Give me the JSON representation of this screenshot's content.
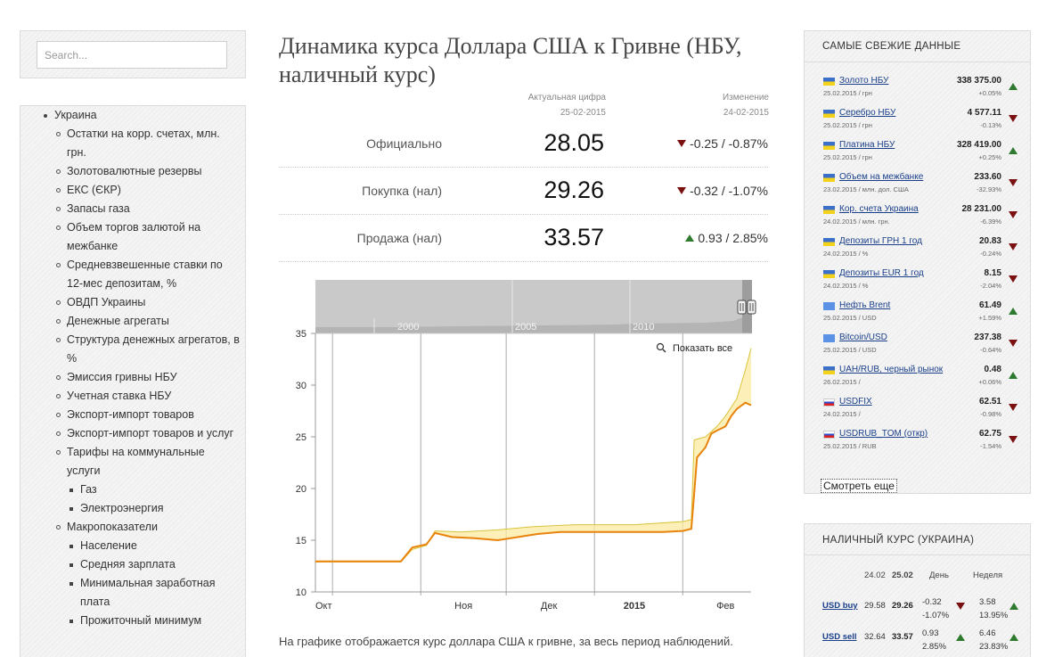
{
  "search": {
    "placeholder": "Search..."
  },
  "nav": {
    "items": [
      {
        "label": "Украина",
        "level": 0
      },
      {
        "label": "Остатки на корр. счетах, млн. грн.",
        "level": 1
      },
      {
        "label": "Золотовалютные резервы",
        "level": 1
      },
      {
        "label": "ЕКС (ЄКР)",
        "level": 1
      },
      {
        "label": "Запасы газа",
        "level": 1
      },
      {
        "label": "Объем торгов залютой на межбанке",
        "level": 1
      },
      {
        "label": "Средневзвешенные ставки по 12-мес депозитам, %",
        "level": 1
      },
      {
        "label": "ОВДП Украины",
        "level": 1
      },
      {
        "label": "Денежные агрегаты",
        "level": 1
      },
      {
        "label": "Структура денежных агрегатов, в %",
        "level": 1
      },
      {
        "label": "Эмиссия гривны НБУ",
        "level": 1
      },
      {
        "label": "Учетная ставка НБУ",
        "level": 1
      },
      {
        "label": "Экспорт-импорт товаров",
        "level": 1
      },
      {
        "label": "Экспорт-импорт товаров и услуг",
        "level": 1
      },
      {
        "label": "Тарифы на коммунальные услуги",
        "level": 1
      },
      {
        "label": "Газ",
        "level": 2
      },
      {
        "label": "Электроэнергия",
        "level": 2
      },
      {
        "label": "Макропоказатели",
        "level": 1
      },
      {
        "label": "Население",
        "level": 2
      },
      {
        "label": "Средняя зарплата",
        "level": 2
      },
      {
        "label": "Минимальная заработная плата",
        "level": 2
      },
      {
        "label": "Прожиточный минимум",
        "level": 2
      }
    ]
  },
  "main": {
    "title": "Динамика курса Доллара США к Гривне (НБУ, наличный курс)",
    "header": {
      "actual_label": "Актуальная цифра",
      "actual_date": "25-02-2015",
      "change_label": "Изменение",
      "change_date": "24-02-2015"
    },
    "rows": [
      {
        "label": "Официально",
        "value": "28.05",
        "change": "-0.25 / -0.87%",
        "direction": "down"
      },
      {
        "label": "Покупка (нал)",
        "value": "29.26",
        "change": "-0.32 / -1.07%",
        "direction": "down"
      },
      {
        "label": "Продажа (нал)",
        "value": "33.57",
        "change": "0.93 / 2.85%",
        "direction": "up"
      }
    ],
    "footnote": "На графике отображается курс доллара США к гривне, за весь период наблюдений."
  },
  "chart_data": {
    "type": "line",
    "reset_zoom_label": "Показать все",
    "navigator_labels": [
      "2000",
      "2005",
      "2010"
    ],
    "x_ticks": [
      "Окт",
      "Ноя",
      "Дек",
      "2015",
      "Фев"
    ],
    "ylim": [
      10,
      35
    ],
    "y_ticks": [
      10,
      15,
      20,
      25,
      30,
      35
    ],
    "x_range": [
      "2014-09-25",
      "2015-02-25"
    ],
    "series": [
      {
        "color": "#e8830c",
        "points": [
          [
            "2014-09-25",
            12.95
          ],
          [
            "2014-10-25",
            12.95
          ],
          [
            "2014-10-29",
            14.3
          ],
          [
            "2014-11-03",
            14.6
          ],
          [
            "2014-11-06",
            15.7
          ],
          [
            "2014-11-12",
            15.3
          ],
          [
            "2014-11-20",
            15.2
          ],
          [
            "2014-11-28",
            15.0
          ],
          [
            "2014-12-05",
            15.3
          ],
          [
            "2014-12-12",
            15.6
          ],
          [
            "2014-12-20",
            15.8
          ],
          [
            "2014-12-27",
            15.8
          ],
          [
            "2015-01-05",
            15.8
          ],
          [
            "2015-01-15",
            15.8
          ],
          [
            "2015-01-25",
            15.8
          ],
          [
            "2015-02-01",
            15.9
          ],
          [
            "2015-02-04",
            16.1
          ],
          [
            "2015-02-05",
            19.5
          ],
          [
            "2015-02-06",
            23.0
          ],
          [
            "2015-02-09",
            24.0
          ],
          [
            "2015-02-11",
            25.3
          ],
          [
            "2015-02-13",
            25.6
          ],
          [
            "2015-02-16",
            26.0
          ],
          [
            "2015-02-18",
            27.0
          ],
          [
            "2015-02-20",
            27.7
          ],
          [
            "2015-02-23",
            28.3
          ],
          [
            "2015-02-25",
            28.05
          ]
        ]
      },
      {
        "color": "#d9c43c",
        "points": [
          [
            "2014-09-25",
            12.9
          ],
          [
            "2014-10-25",
            12.9
          ],
          [
            "2014-10-29",
            14.1
          ],
          [
            "2014-11-03",
            14.5
          ],
          [
            "2014-11-06",
            15.9
          ],
          [
            "2014-11-15",
            15.8
          ],
          [
            "2014-11-28",
            16.0
          ],
          [
            "2014-12-10",
            16.3
          ],
          [
            "2014-12-25",
            16.5
          ],
          [
            "2015-01-15",
            16.5
          ],
          [
            "2015-02-01",
            16.8
          ],
          [
            "2015-02-04",
            17.0
          ],
          [
            "2015-02-05",
            24.7
          ],
          [
            "2015-02-09",
            25.0
          ],
          [
            "2015-02-13",
            26.0
          ],
          [
            "2015-02-16",
            27.0
          ],
          [
            "2015-02-20",
            28.7
          ],
          [
            "2015-02-23",
            31.5
          ],
          [
            "2015-02-25",
            33.57
          ]
        ]
      }
    ]
  },
  "fresh": {
    "title": "САМЫЕ СВЕЖИЕ ДАННЫЕ",
    "more_label": "Смотреть еще",
    "items": [
      {
        "flag": "ua",
        "name": "Золото НБУ",
        "value": "338 375.00",
        "meta": "25.02.2015 / грн",
        "pct": "+0.05%",
        "direction": "up"
      },
      {
        "flag": "ua",
        "name": "Серебро НБУ",
        "value": "4 577.11",
        "meta": "25.02.2015 / грн",
        "pct": "-0.13%",
        "direction": "down"
      },
      {
        "flag": "ua",
        "name": "Платина НБУ",
        "value": "328 419.00",
        "meta": "25.02.2015 / грн",
        "pct": "+0.25%",
        "direction": "up"
      },
      {
        "flag": "ua",
        "name": "Объем на межбанке",
        "value": "233.60",
        "meta": "23.02.2015 / млн. дол. США",
        "pct": "-32.93%",
        "direction": "down"
      },
      {
        "flag": "ua",
        "name": "Кор. счета Украина",
        "value": "28 231.00",
        "meta": "24.02.2015 / млн. грн.",
        "pct": "-6.39%",
        "direction": "down"
      },
      {
        "flag": "ua",
        "name": "Депозиты ГРН 1 год",
        "value": "20.83",
        "meta": "24.02.2015 / %",
        "pct": "-0.24%",
        "direction": "down"
      },
      {
        "flag": "ua",
        "name": "Депозиты EUR 1 год",
        "value": "8.15",
        "meta": "24.02.2015 / %",
        "pct": "-2.04%",
        "direction": "down"
      },
      {
        "flag": "un",
        "name": "Нефть Brent",
        "value": "61.49",
        "meta": "25.02.2015 / USD",
        "pct": "+1.59%",
        "direction": "up"
      },
      {
        "flag": "un",
        "name": "Bitcoin/USD",
        "value": "237.38",
        "meta": "25.02.2015 / USD",
        "pct": "-0.64%",
        "direction": "down"
      },
      {
        "flag": "ua",
        "name": "UAH/RUB, черный рынок",
        "value": "0.48",
        "meta": "26.02.2015 /",
        "pct": "+0.06%",
        "direction": "up"
      },
      {
        "flag": "ru",
        "name": "USDFIX",
        "value": "62.51",
        "meta": "24.02.2015 /",
        "pct": "-0.98%",
        "direction": "down"
      },
      {
        "flag": "ru",
        "name": "USDRUB_TOM (откр)",
        "value": "62.75",
        "meta": "25.02.2015 / RUB",
        "pct": "-1.54%",
        "direction": "down"
      }
    ]
  },
  "cash": {
    "title": "НАЛИЧНЫЙ КУРС (УКРАИНА)",
    "head_prev": "24.02",
    "head_cur": "25.02",
    "head_day": "День",
    "head_week": "Неделя",
    "rows": [
      {
        "name": "USD buy",
        "prev": "29.58",
        "cur": "29.26",
        "day_abs": "-0.32",
        "day_pct": "-1.07%",
        "day_dir": "down",
        "week_abs": "3.58",
        "week_pct": "13.95%",
        "week_dir": "up"
      },
      {
        "name": "USD sell",
        "prev": "32.64",
        "cur": "33.57",
        "day_abs": "0.93",
        "day_pct": "2.85%",
        "day_dir": "up",
        "week_abs": "6.46",
        "week_pct": "23.83%",
        "week_dir": "up"
      }
    ]
  },
  "colors": {
    "link": "#1a3f8a",
    "down": "#7a1010",
    "up": "#2e7a2e",
    "official": "#e8830c",
    "cash": "#d9c43c"
  }
}
